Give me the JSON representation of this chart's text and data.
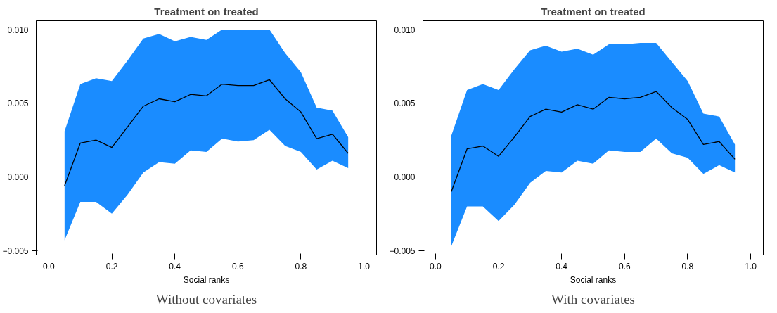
{
  "chart_data": [
    {
      "type": "line",
      "title": "Treatment on treated",
      "xlabel": "Social ranks",
      "annotations": [
        "Without covariates"
      ],
      "x": [
        0.05,
        0.1,
        0.15,
        0.2,
        0.25,
        0.3,
        0.35,
        0.4,
        0.45,
        0.5,
        0.55,
        0.6,
        0.65,
        0.7,
        0.75,
        0.8,
        0.85,
        0.9,
        0.95
      ],
      "series": [
        {
          "color": "#000000",
          "values": [
            -0.0006,
            0.0023,
            0.0025,
            0.002,
            0.0034,
            0.0048,
            0.0053,
            0.0051,
            0.0056,
            0.0055,
            0.0063,
            0.0062,
            0.0062,
            0.0066,
            0.0053,
            0.0044,
            0.0026,
            0.0029,
            0.0016
          ],
          "lower": [
            -0.0043,
            -0.0017,
            -0.0017,
            -0.0025,
            -0.0012,
            0.0003,
            0.001,
            0.0009,
            0.0018,
            0.0017,
            0.0026,
            0.0024,
            0.0025,
            0.0032,
            0.0021,
            0.0017,
            0.0005,
            0.0011,
            0.0006
          ],
          "upper": [
            0.0031,
            0.0063,
            0.0067,
            0.0065,
            0.0079,
            0.0094,
            0.0097,
            0.0092,
            0.0095,
            0.0093,
            0.01,
            0.01,
            0.01,
            0.01,
            0.0084,
            0.0071,
            0.0047,
            0.0045,
            0.0027
          ]
        }
      ],
      "ref_lines": [
        {
          "axis": "y",
          "value": 0,
          "line_style": "dotted",
          "color": "#000000"
        }
      ],
      "xlim": [
        -0.04,
        1.04
      ],
      "ylim": [
        -0.0053,
        0.0106
      ],
      "xticks": [
        {
          "value": 0,
          "label": "0.0"
        },
        {
          "value": 0.2,
          "label": "0.2"
        },
        {
          "value": 0.4,
          "label": "0.4"
        },
        {
          "value": 0.6,
          "label": "0.6"
        },
        {
          "value": 0.8,
          "label": "0.8"
        },
        {
          "value": 1,
          "label": "1.0"
        }
      ],
      "yticks": [
        {
          "value": -0.005,
          "label": "−0.005"
        },
        {
          "value": 0,
          "label": "0.000"
        },
        {
          "value": 0.005,
          "label": "0.005"
        },
        {
          "value": 0.01,
          "label": "0.010"
        }
      ],
      "grid": false
    },
    {
      "type": "line",
      "title": "Treatment on treated",
      "xlabel": "Social ranks",
      "annotations": [
        "With covariates"
      ],
      "x": [
        0.05,
        0.1,
        0.15,
        0.2,
        0.25,
        0.3,
        0.35,
        0.4,
        0.45,
        0.5,
        0.55,
        0.6,
        0.65,
        0.7,
        0.75,
        0.8,
        0.85,
        0.9,
        0.95
      ],
      "series": [
        {
          "color": "#000000",
          "values": [
            -0.001,
            0.0019,
            0.0021,
            0.0014,
            0.0027,
            0.0041,
            0.0046,
            0.0044,
            0.0049,
            0.0046,
            0.0054,
            0.0053,
            0.0054,
            0.0058,
            0.0047,
            0.0039,
            0.0022,
            0.0024,
            0.0012
          ],
          "lower": [
            -0.0047,
            -0.002,
            -0.002,
            -0.003,
            -0.0019,
            -0.0004,
            0.0004,
            0.0003,
            0.0011,
            0.0009,
            0.0018,
            0.0017,
            0.0017,
            0.0026,
            0.0016,
            0.0013,
            0.0002,
            0.0008,
            0.0003
          ],
          "upper": [
            0.0028,
            0.0059,
            0.0063,
            0.0059,
            0.0073,
            0.0086,
            0.0089,
            0.0085,
            0.0087,
            0.0083,
            0.009,
            0.009,
            0.0091,
            0.0091,
            0.0078,
            0.0065,
            0.0043,
            0.0041,
            0.0022
          ]
        }
      ],
      "ref_lines": [
        {
          "axis": "y",
          "value": 0,
          "line_style": "dotted",
          "color": "#000000"
        }
      ],
      "xlim": [
        -0.04,
        1.04
      ],
      "ylim": [
        -0.0053,
        0.0106
      ],
      "xticks": [
        {
          "value": 0,
          "label": "0.0"
        },
        {
          "value": 0.2,
          "label": "0.2"
        },
        {
          "value": 0.4,
          "label": "0.4"
        },
        {
          "value": 0.6,
          "label": "0.6"
        },
        {
          "value": 0.8,
          "label": "0.8"
        },
        {
          "value": 1,
          "label": "1.0"
        }
      ],
      "yticks": [
        {
          "value": -0.005,
          "label": "−0.005"
        },
        {
          "value": 0,
          "label": "0.000"
        },
        {
          "value": 0.005,
          "label": "0.005"
        },
        {
          "value": 0.01,
          "label": "0.010"
        }
      ],
      "grid": false
    }
  ]
}
